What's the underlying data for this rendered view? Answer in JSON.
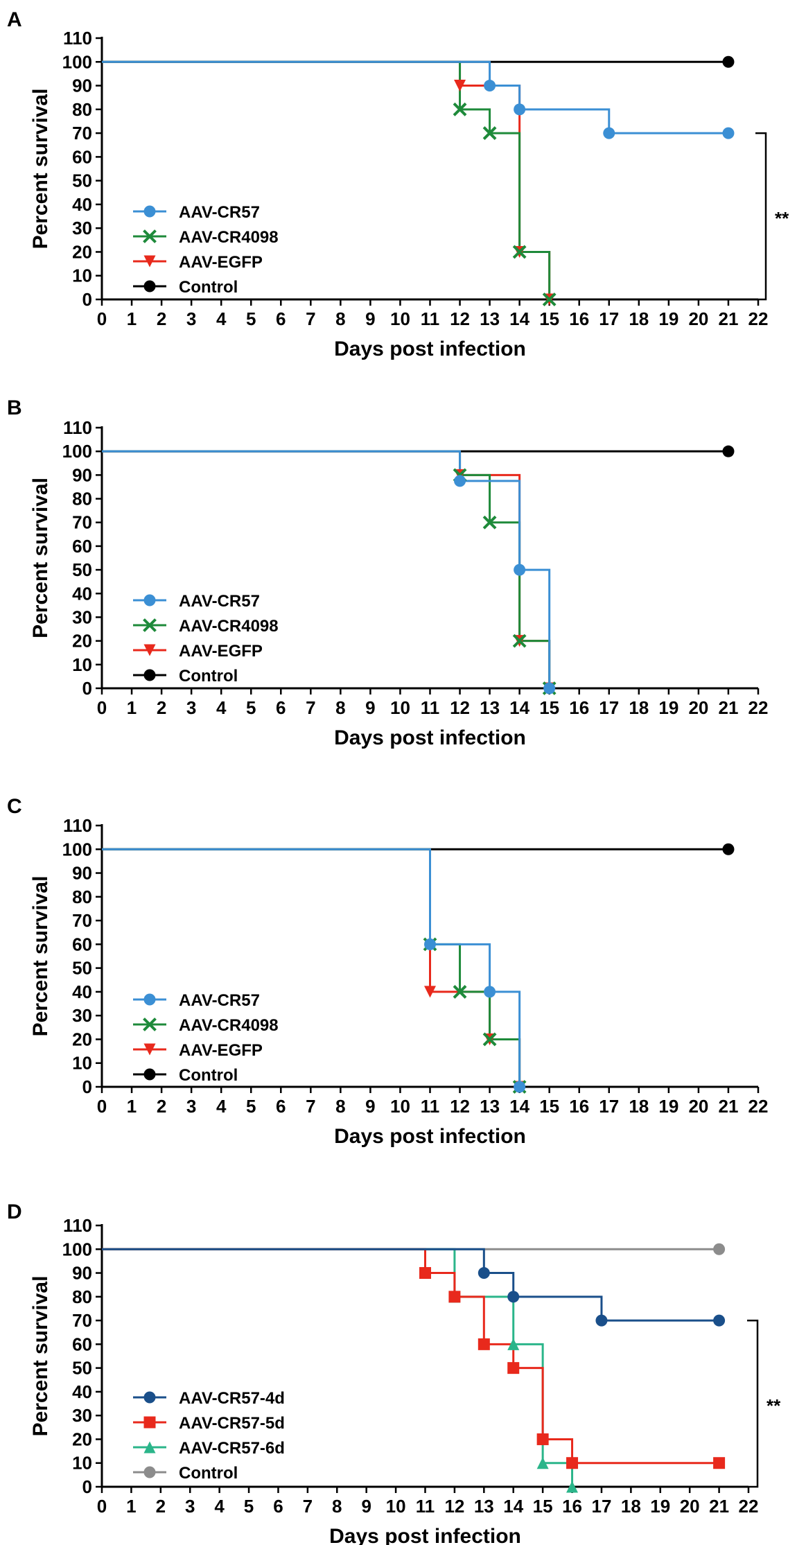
{
  "chart_data": [
    {
      "type": "line",
      "panel": "A",
      "xlabel": "Days post infection",
      "ylabel": "Percent survival",
      "xlim": [
        0,
        22
      ],
      "ylim": [
        0,
        110
      ],
      "xticks": [
        "0",
        "1",
        "2",
        "3",
        "4",
        "5",
        "6",
        "7",
        "8",
        "9",
        "10",
        "11",
        "12",
        "13",
        "14",
        "15",
        "16",
        "17",
        "18",
        "19",
        "20",
        "21",
        "22"
      ],
      "yticks": [
        "0",
        "10",
        "20",
        "30",
        "40",
        "50",
        "60",
        "70",
        "80",
        "90",
        "100",
        "110"
      ],
      "significance": {
        "label": "**",
        "y_range": [
          0,
          70
        ]
      },
      "series": [
        {
          "name": "Control",
          "color": "#000000",
          "marker": "circle",
          "steps": [
            [
              0,
              100
            ],
            [
              21,
              100
            ]
          ],
          "markers": [
            [
              21,
              100
            ]
          ]
        },
        {
          "name": "AAV-EGFP",
          "color": "#e8291c",
          "marker": "triangle-down",
          "steps": [
            [
              0,
              100
            ],
            [
              12,
              90
            ],
            [
              14,
              20
            ],
            [
              15,
              0
            ]
          ],
          "markers": [
            [
              12,
              90
            ],
            [
              14,
              20
            ],
            [
              15,
              0
            ]
          ]
        },
        {
          "name": "AAV-CR4098",
          "color": "#1e8a3a",
          "marker": "x",
          "steps": [
            [
              0,
              100
            ],
            [
              12,
              80
            ],
            [
              13,
              70
            ],
            [
              14,
              20
            ],
            [
              15,
              0
            ]
          ],
          "markers": [
            [
              12,
              80
            ],
            [
              13,
              70
            ],
            [
              14,
              20
            ],
            [
              15,
              0
            ]
          ]
        },
        {
          "name": "AAV-CR57",
          "color": "#3b8fd4",
          "marker": "circle",
          "steps": [
            [
              0,
              100
            ],
            [
              13,
              90
            ],
            [
              14,
              80
            ],
            [
              17,
              70
            ],
            [
              21,
              70
            ]
          ],
          "markers": [
            [
              13,
              90
            ],
            [
              14,
              80
            ],
            [
              17,
              70
            ],
            [
              21,
              70
            ]
          ]
        }
      ],
      "legend": [
        "AAV-CR57",
        "AAV-CR4098",
        "AAV-EGFP",
        "Control"
      ]
    },
    {
      "type": "line",
      "panel": "B",
      "xlabel": "Days post infection",
      "ylabel": "Percent survival",
      "xlim": [
        0,
        22
      ],
      "ylim": [
        0,
        110
      ],
      "xticks": [
        "0",
        "1",
        "2",
        "3",
        "4",
        "5",
        "6",
        "7",
        "8",
        "9",
        "10",
        "11",
        "12",
        "13",
        "14",
        "15",
        "16",
        "17",
        "18",
        "19",
        "20",
        "21",
        "22"
      ],
      "yticks": [
        "0",
        "10",
        "20",
        "30",
        "40",
        "50",
        "60",
        "70",
        "80",
        "90",
        "100",
        "110"
      ],
      "series": [
        {
          "name": "Control",
          "color": "#000000",
          "marker": "circle",
          "steps": [
            [
              0,
              100
            ],
            [
              21,
              100
            ]
          ],
          "markers": [
            [
              21,
              100
            ]
          ]
        },
        {
          "name": "AAV-EGFP",
          "color": "#e8291c",
          "marker": "triangle-down",
          "steps": [
            [
              0,
              100
            ],
            [
              12,
              90
            ],
            [
              14,
              20
            ],
            [
              15,
              0
            ]
          ],
          "markers": [
            [
              12,
              90
            ],
            [
              14,
              20
            ],
            [
              15,
              0
            ]
          ]
        },
        {
          "name": "AAV-CR4098",
          "color": "#1e8a3a",
          "marker": "x",
          "steps": [
            [
              0,
              100
            ],
            [
              12,
              90
            ],
            [
              13,
              70
            ],
            [
              14,
              20
            ],
            [
              15,
              0
            ]
          ],
          "markers": [
            [
              12,
              90
            ],
            [
              13,
              70
            ],
            [
              14,
              20
            ],
            [
              15,
              0
            ]
          ]
        },
        {
          "name": "AAV-CR57",
          "color": "#3b8fd4",
          "marker": "circle",
          "steps": [
            [
              0,
              100
            ],
            [
              12,
              87.5
            ],
            [
              14,
              50
            ],
            [
              15,
              0
            ]
          ],
          "markers": [
            [
              12,
              87.5
            ],
            [
              14,
              50
            ],
            [
              15,
              0
            ]
          ]
        }
      ],
      "legend": [
        "AAV-CR57",
        "AAV-CR4098",
        "AAV-EGFP",
        "Control"
      ]
    },
    {
      "type": "line",
      "panel": "C",
      "xlabel": "Days post infection",
      "ylabel": "Percent survival",
      "xlim": [
        0,
        22
      ],
      "ylim": [
        0,
        110
      ],
      "xticks": [
        "0",
        "1",
        "2",
        "3",
        "4",
        "5",
        "6",
        "7",
        "8",
        "9",
        "10",
        "11",
        "12",
        "13",
        "14",
        "15",
        "16",
        "17",
        "18",
        "19",
        "20",
        "21",
        "22"
      ],
      "yticks": [
        "0",
        "10",
        "20",
        "30",
        "40",
        "50",
        "60",
        "70",
        "80",
        "90",
        "100",
        "110"
      ],
      "series": [
        {
          "name": "Control",
          "color": "#000000",
          "marker": "circle",
          "steps": [
            [
              0,
              100
            ],
            [
              21,
              100
            ]
          ],
          "markers": [
            [
              21,
              100
            ]
          ]
        },
        {
          "name": "AAV-EGFP",
          "color": "#e8291c",
          "marker": "triangle-down",
          "steps": [
            [
              0,
              100
            ],
            [
              11,
              40
            ],
            [
              13,
              20
            ],
            [
              14,
              0
            ]
          ],
          "markers": [
            [
              11,
              40
            ],
            [
              13,
              20
            ],
            [
              14,
              0
            ]
          ]
        },
        {
          "name": "AAV-CR4098",
          "color": "#1e8a3a",
          "marker": "x",
          "steps": [
            [
              0,
              100
            ],
            [
              11,
              60
            ],
            [
              12,
              40
            ],
            [
              13,
              20
            ],
            [
              14,
              0
            ]
          ],
          "markers": [
            [
              11,
              60
            ],
            [
              12,
              40
            ],
            [
              13,
              20
            ],
            [
              14,
              0
            ]
          ]
        },
        {
          "name": "AAV-CR57",
          "color": "#3b8fd4",
          "marker": "circle",
          "steps": [
            [
              0,
              100
            ],
            [
              11,
              60
            ],
            [
              13,
              40
            ],
            [
              14,
              0
            ]
          ],
          "markers": [
            [
              11,
              60
            ],
            [
              13,
              40
            ],
            [
              14,
              0
            ]
          ]
        }
      ],
      "legend": [
        "AAV-CR57",
        "AAV-CR4098",
        "AAV-EGFP",
        "Control"
      ]
    },
    {
      "type": "line",
      "panel": "D",
      "xlabel": "Days post infection",
      "ylabel": "Percent survival",
      "xlim": [
        0,
        22
      ],
      "ylim": [
        0,
        110
      ],
      "xticks": [
        "0",
        "1",
        "2",
        "3",
        "4",
        "5",
        "6",
        "7",
        "8",
        "9",
        "10",
        "11",
        "12",
        "13",
        "14",
        "15",
        "16",
        "17",
        "18",
        "19",
        "20",
        "21",
        "22"
      ],
      "yticks": [
        "0",
        "10",
        "20",
        "30",
        "40",
        "50",
        "60",
        "70",
        "80",
        "90",
        "100",
        "110"
      ],
      "significance": {
        "label": "**",
        "y_range": [
          0,
          70
        ]
      },
      "series": [
        {
          "name": "Control",
          "color": "#8c8c8c",
          "marker": "circle",
          "steps": [
            [
              0,
              100
            ],
            [
              21,
              100
            ]
          ],
          "markers": [
            [
              21,
              100
            ]
          ]
        },
        {
          "name": "AAV-CR57-6d",
          "color": "#2bb58a",
          "marker": "triangle-up",
          "steps": [
            [
              0,
              100
            ],
            [
              12,
              80
            ],
            [
              14,
              60
            ],
            [
              15,
              10
            ],
            [
              16,
              0
            ]
          ],
          "markers": [
            [
              12,
              80
            ],
            [
              14,
              60
            ],
            [
              15,
              10
            ],
            [
              16,
              0
            ]
          ]
        },
        {
          "name": "AAV-CR57-5d",
          "color": "#e8291c",
          "marker": "square",
          "steps": [
            [
              0,
              100
            ],
            [
              11,
              90
            ],
            [
              12,
              80
            ],
            [
              13,
              60
            ],
            [
              14,
              50
            ],
            [
              15,
              20
            ],
            [
              16,
              10
            ],
            [
              21,
              10
            ]
          ],
          "markers": [
            [
              11,
              90
            ],
            [
              12,
              80
            ],
            [
              13,
              60
            ],
            [
              14,
              50
            ],
            [
              15,
              20
            ],
            [
              16,
              10
            ],
            [
              21,
              10
            ]
          ]
        },
        {
          "name": "AAV-CR57-4d",
          "color": "#1a4f8a",
          "marker": "circle",
          "steps": [
            [
              0,
              100
            ],
            [
              13,
              90
            ],
            [
              14,
              80
            ],
            [
              17,
              70
            ],
            [
              21,
              70
            ]
          ],
          "markers": [
            [
              13,
              90
            ],
            [
              14,
              80
            ],
            [
              17,
              70
            ],
            [
              21,
              70
            ]
          ]
        }
      ],
      "legend": [
        "AAV-CR57-4d",
        "AAV-CR57-5d",
        "AAV-CR57-6d",
        "Control"
      ]
    }
  ]
}
